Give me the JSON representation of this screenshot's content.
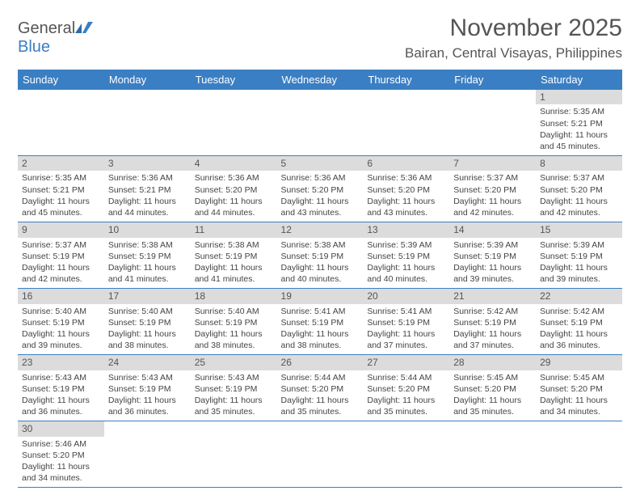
{
  "logo": {
    "text1": "General",
    "text2": "Blue"
  },
  "title": "November 2025",
  "location": "Bairan, Central Visayas, Philippines",
  "weekday_bg": "#3a7fc4",
  "weekday_fg": "#ffffff",
  "daynum_bg": "#dcdcdc",
  "weekdays": [
    "Sunday",
    "Monday",
    "Tuesday",
    "Wednesday",
    "Thursday",
    "Friday",
    "Saturday"
  ],
  "days": [
    {
      "n": 1,
      "sr": "5:35 AM",
      "ss": "5:21 PM",
      "dl": "11 hours and 45 minutes."
    },
    {
      "n": 2,
      "sr": "5:35 AM",
      "ss": "5:21 PM",
      "dl": "11 hours and 45 minutes."
    },
    {
      "n": 3,
      "sr": "5:36 AM",
      "ss": "5:21 PM",
      "dl": "11 hours and 44 minutes."
    },
    {
      "n": 4,
      "sr": "5:36 AM",
      "ss": "5:20 PM",
      "dl": "11 hours and 44 minutes."
    },
    {
      "n": 5,
      "sr": "5:36 AM",
      "ss": "5:20 PM",
      "dl": "11 hours and 43 minutes."
    },
    {
      "n": 6,
      "sr": "5:36 AM",
      "ss": "5:20 PM",
      "dl": "11 hours and 43 minutes."
    },
    {
      "n": 7,
      "sr": "5:37 AM",
      "ss": "5:20 PM",
      "dl": "11 hours and 42 minutes."
    },
    {
      "n": 8,
      "sr": "5:37 AM",
      "ss": "5:20 PM",
      "dl": "11 hours and 42 minutes."
    },
    {
      "n": 9,
      "sr": "5:37 AM",
      "ss": "5:19 PM",
      "dl": "11 hours and 42 minutes."
    },
    {
      "n": 10,
      "sr": "5:38 AM",
      "ss": "5:19 PM",
      "dl": "11 hours and 41 minutes."
    },
    {
      "n": 11,
      "sr": "5:38 AM",
      "ss": "5:19 PM",
      "dl": "11 hours and 41 minutes."
    },
    {
      "n": 12,
      "sr": "5:38 AM",
      "ss": "5:19 PM",
      "dl": "11 hours and 40 minutes."
    },
    {
      "n": 13,
      "sr": "5:39 AM",
      "ss": "5:19 PM",
      "dl": "11 hours and 40 minutes."
    },
    {
      "n": 14,
      "sr": "5:39 AM",
      "ss": "5:19 PM",
      "dl": "11 hours and 39 minutes."
    },
    {
      "n": 15,
      "sr": "5:39 AM",
      "ss": "5:19 PM",
      "dl": "11 hours and 39 minutes."
    },
    {
      "n": 16,
      "sr": "5:40 AM",
      "ss": "5:19 PM",
      "dl": "11 hours and 39 minutes."
    },
    {
      "n": 17,
      "sr": "5:40 AM",
      "ss": "5:19 PM",
      "dl": "11 hours and 38 minutes."
    },
    {
      "n": 18,
      "sr": "5:40 AM",
      "ss": "5:19 PM",
      "dl": "11 hours and 38 minutes."
    },
    {
      "n": 19,
      "sr": "5:41 AM",
      "ss": "5:19 PM",
      "dl": "11 hours and 38 minutes."
    },
    {
      "n": 20,
      "sr": "5:41 AM",
      "ss": "5:19 PM",
      "dl": "11 hours and 37 minutes."
    },
    {
      "n": 21,
      "sr": "5:42 AM",
      "ss": "5:19 PM",
      "dl": "11 hours and 37 minutes."
    },
    {
      "n": 22,
      "sr": "5:42 AM",
      "ss": "5:19 PM",
      "dl": "11 hours and 36 minutes."
    },
    {
      "n": 23,
      "sr": "5:43 AM",
      "ss": "5:19 PM",
      "dl": "11 hours and 36 minutes."
    },
    {
      "n": 24,
      "sr": "5:43 AM",
      "ss": "5:19 PM",
      "dl": "11 hours and 36 minutes."
    },
    {
      "n": 25,
      "sr": "5:43 AM",
      "ss": "5:19 PM",
      "dl": "11 hours and 35 minutes."
    },
    {
      "n": 26,
      "sr": "5:44 AM",
      "ss": "5:20 PM",
      "dl": "11 hours and 35 minutes."
    },
    {
      "n": 27,
      "sr": "5:44 AM",
      "ss": "5:20 PM",
      "dl": "11 hours and 35 minutes."
    },
    {
      "n": 28,
      "sr": "5:45 AM",
      "ss": "5:20 PM",
      "dl": "11 hours and 35 minutes."
    },
    {
      "n": 29,
      "sr": "5:45 AM",
      "ss": "5:20 PM",
      "dl": "11 hours and 34 minutes."
    },
    {
      "n": 30,
      "sr": "5:46 AM",
      "ss": "5:20 PM",
      "dl": "11 hours and 34 minutes."
    }
  ],
  "labels": {
    "sunrise": "Sunrise: ",
    "sunset": "Sunset: ",
    "daylight": "Daylight: "
  },
  "first_weekday_index": 6
}
